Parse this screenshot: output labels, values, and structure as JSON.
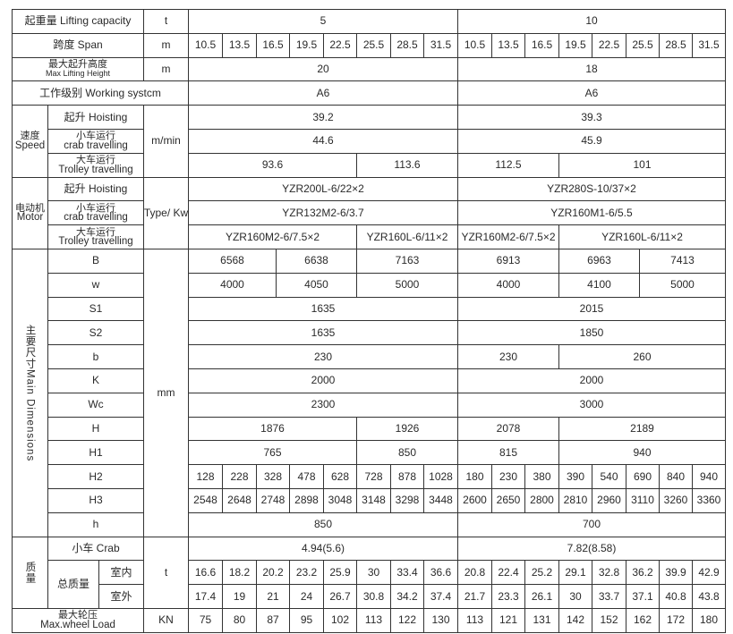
{
  "header": {
    "capacity_label": "起重量 Lifting  capacity",
    "capacity_unit": "t",
    "capacity": [
      "5",
      "10"
    ],
    "span_label": "跨度 Span",
    "span_unit": "m",
    "spans": [
      [
        "10.5",
        "13.5",
        "16.5",
        "19.5",
        "22.5",
        "25.5",
        "28.5",
        "31.5"
      ],
      [
        "10.5",
        "13.5",
        "16.5",
        "19.5",
        "22.5",
        "25.5",
        "28.5",
        "31.5"
      ]
    ],
    "height_label_cn": "最大起升高度",
    "height_label_en": "Max Lifting  Height",
    "height_unit": "m",
    "height": [
      "20",
      "18"
    ],
    "working_label": "工作级别  Working systcm",
    "working": [
      "A6",
      "A6"
    ]
  },
  "speed": {
    "group_cn": "速度",
    "group_en": "Speed",
    "unit": "m/min",
    "hoisting_label": "起升 Hoisting",
    "hoisting": [
      "39.2",
      "39.3"
    ],
    "crab_label_cn": "小车运行",
    "crab_label_en": "crab  travelling",
    "crab": [
      "44.6",
      "45.9"
    ],
    "trolley_label_cn": "大车运行",
    "trolley_label_en": "Trolley  travelling",
    "trolley": [
      "93.6",
      "113.6",
      "112.5",
      "101"
    ]
  },
  "motor": {
    "group_cn": "电动机",
    "group_en": "Motor",
    "unit": "Type/ Kw",
    "hoisting_label": "起升 Hoisting",
    "hoisting": [
      "YZR200L-6/22×2",
      "YZR280S-10/37×2"
    ],
    "crab_label_cn": "小车运行",
    "crab_label_en": "crab  travelling",
    "crab": [
      "YZR132M2-6/3.7",
      "YZR160M1-6/5.5"
    ],
    "trolley_label_cn": "大车运行",
    "trolley_label_en": "Trolley  travelling",
    "trolley": [
      "YZR160M2-6/7.5×2",
      "YZR160L-6/11×2",
      "YZR160M2-6/7.5×2",
      "YZR160L-6/11×2"
    ]
  },
  "dimensions": {
    "group_cn": "主要尺寸",
    "group_en": "Main Dimensions",
    "unit": "mm",
    "B_label": "B",
    "B": [
      "6568",
      "6638",
      "7163",
      "6913",
      "6963",
      "7413"
    ],
    "w_label": "w",
    "w": [
      "4000",
      "4050",
      "5000",
      "4000",
      "4100",
      "5000"
    ],
    "S1_label": "S1",
    "S1": [
      "1635",
      "2015"
    ],
    "S2_label": "S2",
    "S2": [
      "1635",
      "1850"
    ],
    "b_label": "b",
    "b": [
      "230",
      "230",
      "260"
    ],
    "K_label": "K",
    "K": [
      "2000",
      "2000"
    ],
    "Wc_label": "Wc",
    "Wc": [
      "2300",
      "3000"
    ],
    "H_label": "H",
    "H": [
      "1876",
      "1926",
      "2078",
      "2189"
    ],
    "H1_label": "H1",
    "H1": [
      "765",
      "850",
      "815",
      "940"
    ],
    "H2_label": "H2",
    "H2": [
      [
        "128",
        "228",
        "328",
        "478",
        "628",
        "728",
        "878",
        "1028"
      ],
      [
        "180",
        "230",
        "380",
        "390",
        "540",
        "690",
        "840",
        "940"
      ]
    ],
    "H3_label": "H3",
    "H3": [
      [
        "2548",
        "2648",
        "2748",
        "2898",
        "3048",
        "3148",
        "3298",
        "3448"
      ],
      [
        "2600",
        "2650",
        "2800",
        "2810",
        "2960",
        "3110",
        "3260",
        "3360"
      ]
    ],
    "h_label": "h",
    "h": [
      "850",
      "700"
    ]
  },
  "mass": {
    "group_cn": "质量",
    "unit": "t",
    "crab_label": "小车  Crab",
    "crab": [
      "4.94(5.6)",
      "7.82(8.58)"
    ],
    "total_label": "总质量",
    "indoor_label": "室内",
    "indoor": [
      [
        "16.6",
        "18.2",
        "20.2",
        "23.2",
        "25.9",
        "30",
        "33.4",
        "36.6"
      ],
      [
        "20.8",
        "22.4",
        "25.2",
        "29.1",
        "32.8",
        "36.2",
        "39.9",
        "42.9"
      ]
    ],
    "outdoor_label": "室外",
    "outdoor": [
      [
        "17.4",
        "19",
        "21",
        "24",
        "26.7",
        "30.8",
        "34.2",
        "37.4"
      ],
      [
        "21.7",
        "23.3",
        "26.1",
        "30",
        "33.7",
        "37.1",
        "40.8",
        "43.8"
      ]
    ]
  },
  "wheel": {
    "label_cn": "最大轮压",
    "label_en": "Max.wheel Load",
    "unit": "KN",
    "values": [
      [
        "75",
        "80",
        "87",
        "95",
        "102",
        "113",
        "122",
        "130"
      ],
      [
        "113",
        "121",
        "131",
        "142",
        "152",
        "162",
        "172",
        "180"
      ]
    ]
  }
}
